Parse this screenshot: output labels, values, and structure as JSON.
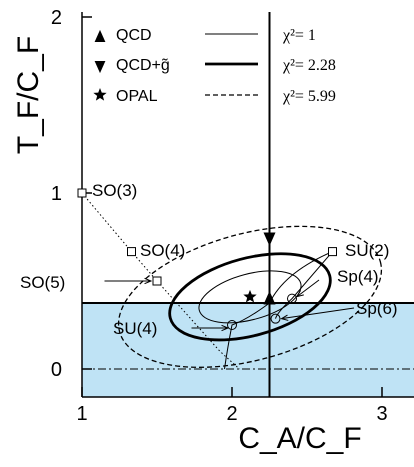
{
  "chart_data": {
    "type": "scatter",
    "xlabel": "C_A/C_F",
    "ylabel": "T_F/C_F",
    "xlim": [
      1,
      3.25
    ],
    "ylim": [
      -0.3,
      2
    ],
    "x_ticks": [
      {
        "v": 1,
        "label": "1"
      },
      {
        "v": 2,
        "label": "2"
      },
      {
        "v": 3,
        "label": "3"
      }
    ],
    "y_ticks": [
      {
        "v": 0,
        "label": "0"
      },
      {
        "v": 1,
        "label": "1"
      },
      {
        "v": 2,
        "label": "2"
      }
    ],
    "shaded_band": {
      "y_from": -0.3,
      "y_to": 0.375,
      "color": "#bfe3f5"
    },
    "reference_lines": {
      "vertical_x": 2.25,
      "horizontal_y": 0.375,
      "dashdot_y": 0
    },
    "legend": {
      "placement": "top",
      "markers": [
        {
          "symbol": "triangle-up",
          "label": "QCD"
        },
        {
          "symbol": "triangle-down",
          "label": "QCD+g̃"
        },
        {
          "symbol": "star",
          "label": "OPAL"
        }
      ],
      "lines": [
        {
          "style": "thin",
          "label": "χ²= 1"
        },
        {
          "style": "thick",
          "label": "χ²= 2.28"
        },
        {
          "style": "dashed",
          "label": "χ²= 5.99"
        }
      ]
    },
    "points": [
      {
        "name": "QCD",
        "x": 2.25,
        "y": 0.375,
        "symbol": "triangle-up"
      },
      {
        "name": "QCD+g̃",
        "x": 2.25,
        "y": 0.75,
        "symbol": "triangle-down"
      },
      {
        "name": "OPAL",
        "x": 2.12,
        "y": 0.41,
        "symbol": "star"
      }
    ],
    "ellipses": [
      {
        "label": "χ²= 1",
        "cx": 2.12,
        "cy": 0.41,
        "rx": 0.35,
        "ry": 0.13,
        "angle": -15,
        "style": "thin"
      },
      {
        "label": "χ²= 2.28",
        "cx": 2.12,
        "cy": 0.41,
        "rx": 0.55,
        "ry": 0.22,
        "angle": -15,
        "style": "thick"
      },
      {
        "label": "χ²= 5.99",
        "cx": 2.12,
        "cy": 0.41,
        "rx": 0.9,
        "ry": 0.36,
        "angle": -15,
        "style": "dashed"
      }
    ],
    "groups": [
      {
        "label": "SO(3)",
        "x": 1.0,
        "y": 1.0,
        "symbol": "square"
      },
      {
        "label": "SO(4)",
        "x": 1.33,
        "y": 0.667,
        "symbol": "square"
      },
      {
        "label": "SO(5)",
        "x": 1.5,
        "y": 0.5,
        "symbol": "square"
      },
      {
        "label": "SU(2)",
        "x": 2.67,
        "y": 0.667,
        "symbol": "square"
      },
      {
        "label": "Sp(4)",
        "x": 2.4,
        "y": 0.4,
        "symbol": "circle"
      },
      {
        "label": "Sp(6)",
        "x": 2.29,
        "y": 0.286,
        "symbol": "circle"
      },
      {
        "label": "SU(4)",
        "x": 2.0,
        "y": 0.25,
        "symbol": "circle"
      }
    ]
  }
}
